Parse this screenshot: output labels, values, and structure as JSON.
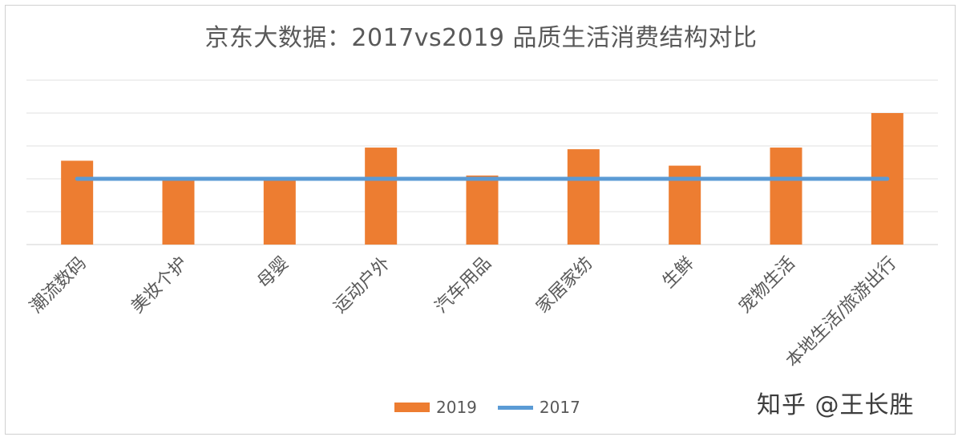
{
  "chart_data": {
    "type": "bar",
    "title": "京东大数据：2017vs2019 品质生活消费结构对比",
    "categories": [
      "潮流数码",
      "美妆个护",
      "母婴",
      "运动户外",
      "汽车用品",
      "家居家纺",
      "生鲜",
      "宠物生活",
      "本地生活/旅游出行"
    ],
    "series": [
      {
        "name": "2019",
        "kind": "bar",
        "color": "#ED7D31",
        "values": [
          2.55,
          1.95,
          1.95,
          2.95,
          2.1,
          2.9,
          2.4,
          2.95,
          4.0
        ]
      },
      {
        "name": "2017",
        "kind": "line",
        "color": "#5B9BD5",
        "values": [
          2.0,
          2.0,
          2.0,
          2.0,
          2.0,
          2.0,
          2.0,
          2.0,
          2.0
        ]
      }
    ],
    "ylim": [
      0,
      5
    ],
    "gridlines": [
      0,
      1,
      2,
      3,
      4,
      5
    ],
    "xlabel": "",
    "ylabel": "",
    "legend_position": "bottom"
  },
  "legend": {
    "bar_label": "2019",
    "line_label": "2017"
  },
  "watermark": "知乎 @王长胜"
}
